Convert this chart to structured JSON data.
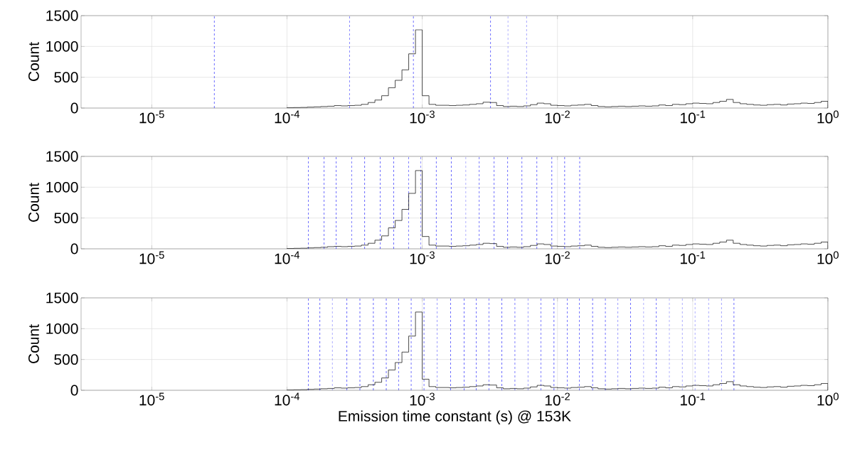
{
  "chart_data": [
    {
      "type": "histogram",
      "ylabel": "Count",
      "color": "#000000",
      "grid": true,
      "xlim": [
        3e-06,
        1
      ],
      "ylim": [
        0,
        1500
      ],
      "log": "x",
      "xticks": [
        {
          "value": 1e-05,
          "label": "10$^{-5}$"
        },
        {
          "value": 0.0001,
          "label": "10$^{-4}$"
        },
        {
          "value": 0.001,
          "label": "10$^{-3}$"
        },
        {
          "value": 0.01,
          "label": "10$^{-2}$"
        },
        {
          "value": 0.1,
          "label": "10$^{-1}$"
        },
        {
          "value": 1,
          "label": "10$^{0}$"
        }
      ],
      "yticks": [
        0,
        500,
        1000,
        1500
      ],
      "bins": [
        0.0001,
        0.0001122,
        0.0001259,
        0.0001413,
        0.0001585,
        0.0001778,
        0.0001995,
        0.0002239,
        0.0002512,
        0.0002818,
        0.0003162,
        0.0003548,
        0.0003981,
        0.0004467,
        0.0005012,
        0.0005623,
        0.000631,
        0.0007079,
        0.0007943,
        0.0008913,
        0.001,
        0.001122,
        0.001259,
        0.001413,
        0.001585,
        0.001778,
        0.001995,
        0.002239,
        0.002512,
        0.002818,
        0.003162,
        0.003548,
        0.003981,
        0.004467,
        0.005012,
        0.005623,
        0.00631,
        0.007079,
        0.007943,
        0.008913,
        0.01,
        0.01122,
        0.01259,
        0.01413,
        0.01585,
        0.01778,
        0.01995,
        0.02239,
        0.02512,
        0.02818,
        0.03162,
        0.03548,
        0.03981,
        0.04467,
        0.05012,
        0.05623,
        0.0631,
        0.07079,
        0.07943,
        0.08913,
        0.1,
        0.1122,
        0.1259,
        0.1413,
        0.1585,
        0.1778,
        0.1995,
        0.2239,
        0.2512,
        0.2818,
        0.3162,
        0.3548,
        0.3981,
        0.4467,
        0.5012,
        0.5623,
        0.631,
        0.7079,
        0.7943,
        0.8913,
        1
      ],
      "values": [
        5,
        8,
        10,
        15,
        20,
        25,
        30,
        40,
        35,
        40,
        45,
        60,
        90,
        130,
        200,
        330,
        450,
        620,
        880,
        1270,
        200,
        60,
        45,
        45,
        40,
        45,
        50,
        60,
        70,
        95,
        90,
        40,
        25,
        30,
        25,
        35,
        55,
        80,
        70,
        45,
        40,
        35,
        45,
        50,
        60,
        40,
        25,
        20,
        25,
        30,
        25,
        30,
        35,
        30,
        35,
        50,
        40,
        60,
        55,
        70,
        80,
        75,
        70,
        90,
        110,
        140,
        90,
        70,
        60,
        50,
        45,
        55,
        60,
        50,
        65,
        70,
        80,
        75,
        90,
        110
      ],
      "ref_lines": [
        {
          "axis": "x",
          "value": 2.9e-05,
          "color": "#0000ff",
          "line_style": "dashed"
        },
        {
          "axis": "x",
          "value": 0.00029,
          "color": "#0000ff",
          "line_style": "dashed"
        },
        {
          "axis": "x",
          "value": 0.00086,
          "color": "#0000ff",
          "line_style": "dashed"
        },
        {
          "axis": "x",
          "value": 0.0032,
          "color": "#0000ff",
          "line_style": "dashed"
        },
        {
          "axis": "x",
          "value": 0.0043,
          "color": "#0000ff",
          "line_style": "dashed"
        },
        {
          "axis": "x",
          "value": 0.0059,
          "color": "#0000ff",
          "line_style": "dashed"
        }
      ]
    },
    {
      "type": "histogram",
      "ylabel": "Count",
      "color": "#000000",
      "grid": true,
      "xlim": [
        3e-06,
        1
      ],
      "ylim": [
        0,
        1500
      ],
      "log": "x",
      "xticks": [
        {
          "value": 1e-05,
          "label": "10$^{-5}$"
        },
        {
          "value": 0.0001,
          "label": "10$^{-4}$"
        },
        {
          "value": 0.001,
          "label": "10$^{-3}$"
        },
        {
          "value": 0.01,
          "label": "10$^{-2}$"
        },
        {
          "value": 0.1,
          "label": "10$^{-1}$"
        },
        {
          "value": 1,
          "label": "10$^{0}$"
        }
      ],
      "yticks": [
        0,
        500,
        1000,
        1500
      ],
      "bins": [
        0.0001,
        0.0001122,
        0.0001259,
        0.0001413,
        0.0001585,
        0.0001778,
        0.0001995,
        0.0002239,
        0.0002512,
        0.0002818,
        0.0003162,
        0.0003548,
        0.0003981,
        0.0004467,
        0.0005012,
        0.0005623,
        0.000631,
        0.0007079,
        0.0007943,
        0.0008913,
        0.001,
        0.001122,
        0.001259,
        0.001413,
        0.001585,
        0.001778,
        0.001995,
        0.002239,
        0.002512,
        0.002818,
        0.003162,
        0.003548,
        0.003981,
        0.004467,
        0.005012,
        0.005623,
        0.00631,
        0.007079,
        0.007943,
        0.008913,
        0.01,
        0.01122,
        0.01259,
        0.01413,
        0.01585,
        0.01778,
        0.01995,
        0.02239,
        0.02512,
        0.02818,
        0.03162,
        0.03548,
        0.03981,
        0.04467,
        0.05012,
        0.05623,
        0.0631,
        0.07079,
        0.07943,
        0.08913,
        0.1,
        0.1122,
        0.1259,
        0.1413,
        0.1585,
        0.1778,
        0.1995,
        0.2239,
        0.2512,
        0.2818,
        0.3162,
        0.3548,
        0.3981,
        0.4467,
        0.5012,
        0.5623,
        0.631,
        0.7079,
        0.7943,
        0.8913,
        1
      ],
      "values": [
        5,
        8,
        10,
        15,
        20,
        25,
        35,
        40,
        35,
        40,
        45,
        60,
        90,
        140,
        210,
        340,
        460,
        640,
        900,
        1270,
        200,
        60,
        45,
        45,
        40,
        45,
        50,
        60,
        70,
        90,
        85,
        40,
        25,
        30,
        25,
        35,
        55,
        80,
        70,
        45,
        40,
        35,
        45,
        50,
        60,
        40,
        25,
        20,
        25,
        30,
        25,
        30,
        35,
        30,
        35,
        50,
        40,
        60,
        55,
        70,
        80,
        75,
        70,
        90,
        110,
        140,
        90,
        70,
        60,
        50,
        45,
        55,
        60,
        50,
        65,
        70,
        80,
        75,
        90,
        110
      ],
      "ref_lines": [
        {
          "axis": "x",
          "value": 0.000144,
          "color": "#0000ff",
          "line_style": "dashed"
        },
        {
          "axis": "x",
          "value": 0.000188,
          "color": "#0000ff",
          "line_style": "dashed"
        },
        {
          "axis": "x",
          "value": 0.000231,
          "color": "#0000ff",
          "line_style": "dashed"
        },
        {
          "axis": "x",
          "value": 0.000301,
          "color": "#0000ff",
          "line_style": "dashed"
        },
        {
          "axis": "x",
          "value": 0.000375,
          "color": "#0000ff",
          "line_style": "dashed"
        },
        {
          "axis": "x",
          "value": 0.000489,
          "color": "#0000ff",
          "line_style": "dashed"
        },
        {
          "axis": "x",
          "value": 0.000615,
          "color": "#0000ff",
          "line_style": "dashed"
        },
        {
          "axis": "x",
          "value": 0.000794,
          "color": "#0000ff",
          "line_style": "dashed"
        },
        {
          "axis": "x",
          "value": 0.000976,
          "color": "#0000ff",
          "line_style": "dashed"
        },
        {
          "axis": "x",
          "value": 0.00127,
          "color": "#0000ff",
          "line_style": "dashed"
        },
        {
          "axis": "x",
          "value": 0.00164,
          "color": "#0000ff",
          "line_style": "dashed"
        },
        {
          "axis": "x",
          "value": 0.0021,
          "color": "#0000ff",
          "line_style": "dashed"
        },
        {
          "axis": "x",
          "value": 0.00264,
          "color": "#0000ff",
          "line_style": "dashed"
        },
        {
          "axis": "x",
          "value": 0.0034,
          "color": "#0000ff",
          "line_style": "dashed"
        },
        {
          "axis": "x",
          "value": 0.00428,
          "color": "#0000ff",
          "line_style": "dashed"
        },
        {
          "axis": "x",
          "value": 0.00546,
          "color": "#0000ff",
          "line_style": "dashed"
        },
        {
          "axis": "x",
          "value": 0.00704,
          "color": "#0000ff",
          "line_style": "dashed"
        },
        {
          "axis": "x",
          "value": 0.00908,
          "color": "#0000ff",
          "line_style": "dashed"
        },
        {
          "axis": "x",
          "value": 0.0113,
          "color": "#0000ff",
          "line_style": "dashed"
        },
        {
          "axis": "x",
          "value": 0.0146,
          "color": "#0000ff",
          "line_style": "dashed"
        }
      ]
    },
    {
      "type": "histogram",
      "ylabel": "Count",
      "xlabel": "Emission time constant (s) @ 153K",
      "color": "#000000",
      "grid": true,
      "xlim": [
        3e-06,
        1
      ],
      "ylim": [
        0,
        1500
      ],
      "log": "x",
      "xticks": [
        {
          "value": 1e-05,
          "label": "10$^{-5}$"
        },
        {
          "value": 0.0001,
          "label": "10$^{-4}$"
        },
        {
          "value": 0.001,
          "label": "10$^{-3}$"
        },
        {
          "value": 0.01,
          "label": "10$^{-2}$"
        },
        {
          "value": 0.1,
          "label": "10$^{-1}$"
        },
        {
          "value": 1,
          "label": "10$^{0}$"
        }
      ],
      "yticks": [
        0,
        500,
        1000,
        1500
      ],
      "bins": [
        0.0001,
        0.0001122,
        0.0001259,
        0.0001413,
        0.0001585,
        0.0001778,
        0.0001995,
        0.0002239,
        0.0002512,
        0.0002818,
        0.0003162,
        0.0003548,
        0.0003981,
        0.0004467,
        0.0005012,
        0.0005623,
        0.000631,
        0.0007079,
        0.0007943,
        0.0008913,
        0.001,
        0.001122,
        0.001259,
        0.001413,
        0.001585,
        0.001778,
        0.001995,
        0.002239,
        0.002512,
        0.002818,
        0.003162,
        0.003548,
        0.003981,
        0.004467,
        0.005012,
        0.005623,
        0.00631,
        0.007079,
        0.007943,
        0.008913,
        0.01,
        0.01122,
        0.01259,
        0.01413,
        0.01585,
        0.01778,
        0.01995,
        0.02239,
        0.02512,
        0.02818,
        0.03162,
        0.03548,
        0.03981,
        0.04467,
        0.05012,
        0.05623,
        0.0631,
        0.07079,
        0.07943,
        0.08913,
        0.1,
        0.1122,
        0.1259,
        0.1413,
        0.1585,
        0.1778,
        0.1995,
        0.2239,
        0.2512,
        0.2818,
        0.3162,
        0.3548,
        0.3981,
        0.4467,
        0.5012,
        0.5623,
        0.631,
        0.7079,
        0.7943,
        0.8913,
        1
      ],
      "values": [
        5,
        8,
        10,
        15,
        20,
        25,
        30,
        40,
        35,
        40,
        45,
        60,
        90,
        130,
        200,
        330,
        450,
        620,
        880,
        1270,
        180,
        60,
        45,
        45,
        40,
        45,
        50,
        60,
        70,
        90,
        85,
        40,
        25,
        30,
        25,
        35,
        55,
        80,
        70,
        45,
        40,
        35,
        45,
        50,
        60,
        40,
        25,
        20,
        25,
        30,
        25,
        30,
        35,
        30,
        35,
        50,
        40,
        60,
        55,
        70,
        80,
        75,
        70,
        90,
        110,
        140,
        90,
        70,
        60,
        50,
        45,
        55,
        60,
        50,
        65,
        70,
        80,
        75,
        90,
        110
      ],
      "ref_lines": [
        {
          "axis": "x",
          "value": 0.000144,
          "color": "#0000ff",
          "line_style": "dashed"
        },
        {
          "axis": "x",
          "value": 0.000175,
          "color": "#0000ff",
          "line_style": "dashed"
        },
        {
          "axis": "x",
          "value": 0.000216,
          "color": "#0000ff",
          "line_style": "dashed"
        },
        {
          "axis": "x",
          "value": 0.000277,
          "color": "#0000ff",
          "line_style": "dashed"
        },
        {
          "axis": "x",
          "value": 0.000346,
          "color": "#0000ff",
          "line_style": "dashed"
        },
        {
          "axis": "x",
          "value": 0.000435,
          "color": "#0000ff",
          "line_style": "dashed"
        },
        {
          "axis": "x",
          "value": 0.000542,
          "color": "#0000ff",
          "line_style": "dashed"
        },
        {
          "axis": "x",
          "value": 0.000671,
          "color": "#0000ff",
          "line_style": "dashed"
        },
        {
          "axis": "x",
          "value": 0.000828,
          "color": "#0000ff",
          "line_style": "dashed"
        },
        {
          "axis": "x",
          "value": 0.00103,
          "color": "#0000ff",
          "line_style": "dashed"
        },
        {
          "axis": "x",
          "value": 0.00129,
          "color": "#0000ff",
          "line_style": "dashed"
        },
        {
          "axis": "x",
          "value": 0.00162,
          "color": "#0000ff",
          "line_style": "dashed"
        },
        {
          "axis": "x",
          "value": 0.00204,
          "color": "#0000ff",
          "line_style": "dashed"
        },
        {
          "axis": "x",
          "value": 0.00251,
          "color": "#0000ff",
          "line_style": "dashed"
        },
        {
          "axis": "x",
          "value": 0.00311,
          "color": "#0000ff",
          "line_style": "dashed"
        },
        {
          "axis": "x",
          "value": 0.00388,
          "color": "#0000ff",
          "line_style": "dashed"
        },
        {
          "axis": "x",
          "value": 0.00485,
          "color": "#0000ff",
          "line_style": "dashed"
        },
        {
          "axis": "x",
          "value": 0.00605,
          "color": "#0000ff",
          "line_style": "dashed"
        },
        {
          "axis": "x",
          "value": 0.00755,
          "color": "#0000ff",
          "line_style": "dashed"
        },
        {
          "axis": "x",
          "value": 0.00942,
          "color": "#0000ff",
          "line_style": "dashed"
        },
        {
          "axis": "x",
          "value": 0.0118,
          "color": "#0000ff",
          "line_style": "dashed"
        },
        {
          "axis": "x",
          "value": 0.0145,
          "color": "#0000ff",
          "line_style": "dashed"
        },
        {
          "axis": "x",
          "value": 0.0182,
          "color": "#0000ff",
          "line_style": "dashed"
        },
        {
          "axis": "x",
          "value": 0.0226,
          "color": "#0000ff",
          "line_style": "dashed"
        },
        {
          "axis": "x",
          "value": 0.028,
          "color": "#0000ff",
          "line_style": "dashed"
        },
        {
          "axis": "x",
          "value": 0.0347,
          "color": "#0000ff",
          "line_style": "dashed"
        },
        {
          "axis": "x",
          "value": 0.0434,
          "color": "#0000ff",
          "line_style": "dashed"
        },
        {
          "axis": "x",
          "value": 0.0538,
          "color": "#0000ff",
          "line_style": "dashed"
        },
        {
          "axis": "x",
          "value": 0.0672,
          "color": "#0000ff",
          "line_style": "dashed"
        },
        {
          "axis": "x",
          "value": 0.0838,
          "color": "#0000ff",
          "line_style": "dashed"
        },
        {
          "axis": "x",
          "value": 0.104,
          "color": "#0000ff",
          "line_style": "dashed"
        },
        {
          "axis": "x",
          "value": 0.131,
          "color": "#0000ff",
          "line_style": "dashed"
        },
        {
          "axis": "x",
          "value": 0.163,
          "color": "#0000ff",
          "line_style": "dashed"
        },
        {
          "axis": "x",
          "value": 0.202,
          "color": "#0000ff",
          "line_style": "dashed"
        }
      ]
    }
  ]
}
